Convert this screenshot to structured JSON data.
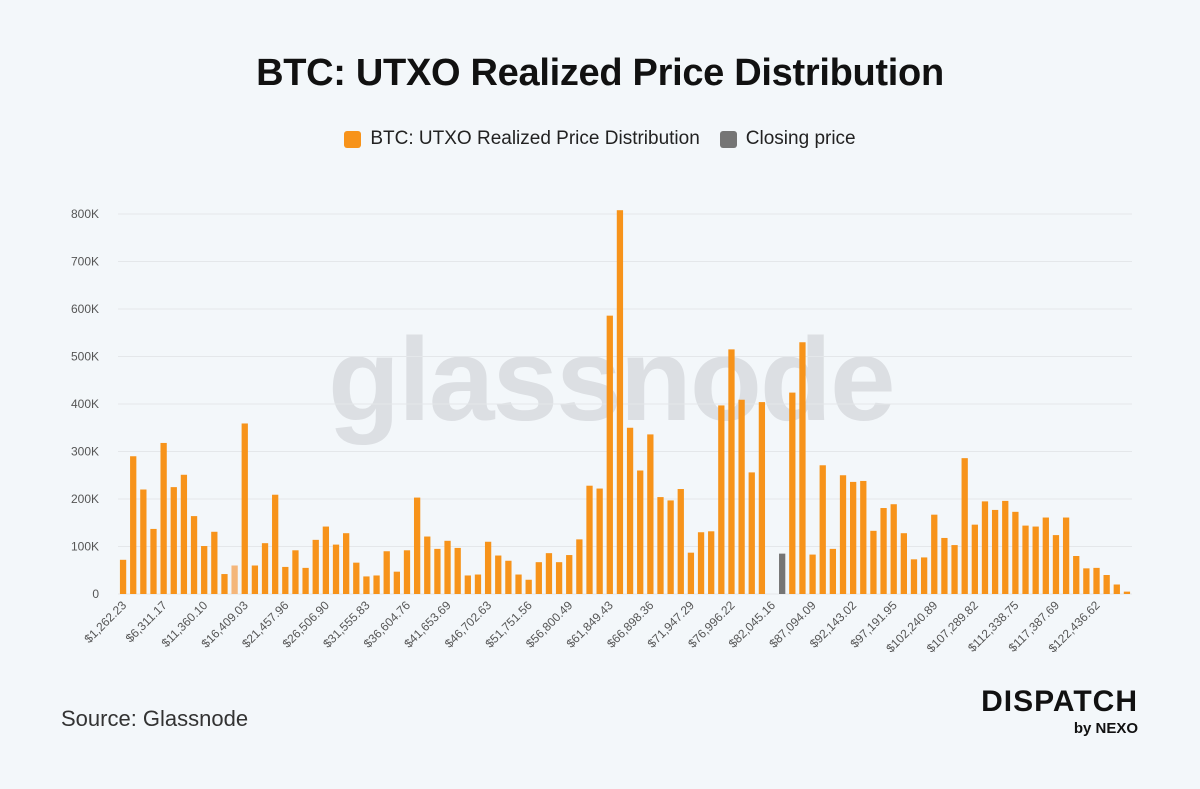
{
  "title": "BTC: UTXO Realized Price Distribution",
  "legend": {
    "series_label": "BTC: UTXO Realized Price Distribution",
    "closing_label": "Closing price"
  },
  "watermark": "glassnode",
  "source": "Source: Glassnode",
  "brand": {
    "name": "DISPATCH",
    "sub": "by NEXO"
  },
  "colors": {
    "bar": "#f7931a",
    "closing": "#757575",
    "highlight": "#f4b67a",
    "grid": "#e4e7ea",
    "axis_text": "#555555"
  },
  "chart_data": {
    "type": "bar",
    "title": "BTC: UTXO Realized Price Distribution",
    "ylim": [
      0,
      800000
    ],
    "yticks": [
      0,
      100000,
      200000,
      300000,
      400000,
      500000,
      600000,
      700000,
      800000
    ],
    "ytick_labels": [
      "0",
      "100K",
      "200K",
      "300K",
      "400K",
      "500K",
      "600K",
      "700K",
      "800K"
    ],
    "grid": true,
    "legend_position": "top-center",
    "xtick_labels": [
      "$1,262.23",
      "$6,311.17",
      "$11,360.10",
      "$16,409.03",
      "$21,457.96",
      "$26,506.90",
      "$31,555.83",
      "$36,604.76",
      "$41,653.69",
      "$46,702.63",
      "$51,751.56",
      "$56,800.49",
      "$61,849.43",
      "$66,898.36",
      "$71,947.29",
      "$76,996.22",
      "$82,045.16",
      "$87,094.09",
      "$92,143.02",
      "$97,191.95",
      "$102,240.89",
      "$107,289.82",
      "$112,338.75",
      "$117,387.69",
      "$122,436.62"
    ],
    "closing_index": 65,
    "highlight_index": 11,
    "series": [
      {
        "name": "BTC: UTXO Realized Price Distribution",
        "values": [
          72000,
          290000,
          220000,
          137000,
          318000,
          225000,
          251000,
          164000,
          101000,
          131000,
          42000,
          60000,
          359000,
          60000,
          107000,
          209000,
          57000,
          92000,
          55000,
          114000,
          142000,
          104000,
          128000,
          66000,
          37000,
          39000,
          90000,
          47000,
          92000,
          203000,
          121000,
          95000,
          112000,
          97000,
          39000,
          41000,
          110000,
          81000,
          70000,
          41000,
          30000,
          67000,
          86000,
          67000,
          82000,
          115000,
          228000,
          222000,
          586000,
          808000,
          350000,
          260000,
          336000,
          204000,
          197000,
          221000,
          87000,
          130000,
          132000,
          397000,
          515000,
          409000,
          256000,
          404000,
          0,
          0,
          424000,
          530000,
          83000,
          271000,
          95000,
          250000,
          236000,
          238000,
          133000,
          181000,
          189000,
          128000,
          73000,
          77000,
          167000,
          118000,
          103000,
          286000,
          146000,
          195000,
          177000,
          196000,
          173000,
          144000,
          142000,
          161000,
          124000,
          161000,
          80000,
          54000,
          55000,
          40000,
          20000,
          5000
        ]
      },
      {
        "name": "Closing price",
        "index": 65,
        "value": 85000
      }
    ]
  }
}
